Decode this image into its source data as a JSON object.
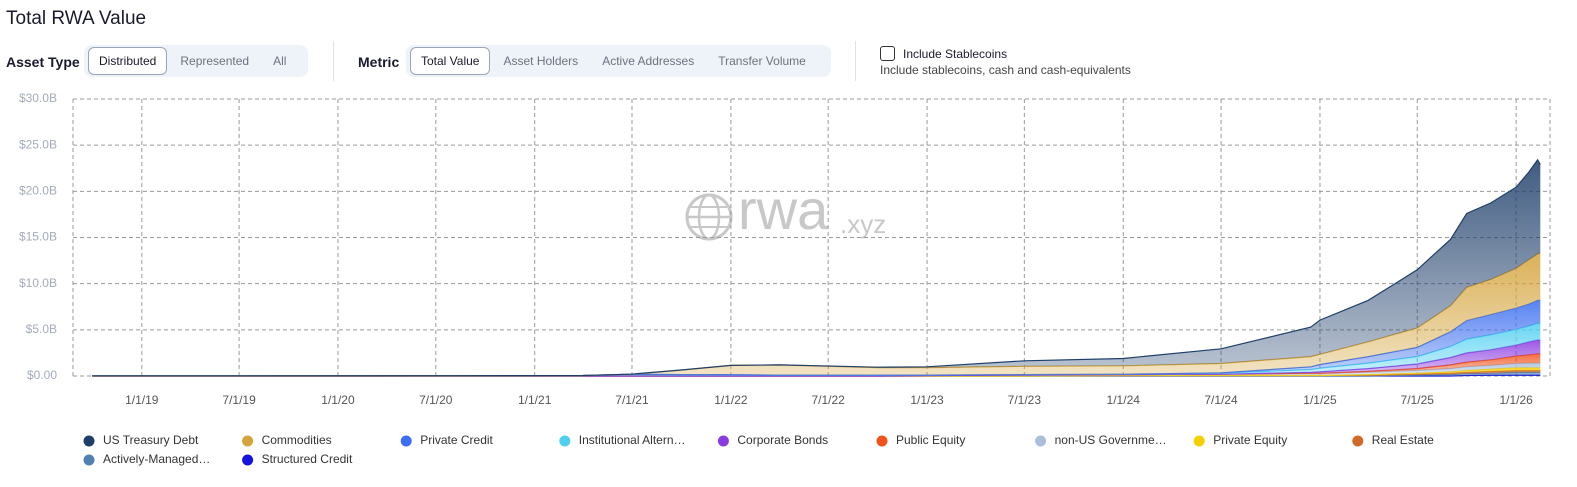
{
  "header": {
    "title": "Total RWA Value"
  },
  "controls": {
    "asset_type": {
      "label": "Asset Type",
      "options": [
        "Distributed",
        "Represented",
        "All"
      ],
      "selected": 0
    },
    "metric": {
      "label": "Metric",
      "options": [
        "Total Value",
        "Asset Holders",
        "Active Addresses",
        "Transfer Volume"
      ],
      "selected": 0
    },
    "stablecoins": {
      "label": "Include Stablecoins",
      "description": "Include stablecoins, cash and cash-equivalents",
      "checked": false
    }
  },
  "chart_data": {
    "type": "stacked-area",
    "watermark": "rwa",
    "watermark_suffix": ".xyz",
    "x": [
      "2018-10-01",
      "2019-07-01",
      "2020-07-01",
      "2021-04-01",
      "2021-06-30",
      "2021-10-01",
      "2022-01-01",
      "2022-04-01",
      "2022-10-01",
      "2023-01-01",
      "2023-07-01",
      "2024-01-01",
      "2024-07-01",
      "2024-12-15",
      "2025-01-01",
      "2025-04-01",
      "2025-07-01",
      "2025-09-01",
      "2025-10-01",
      "2025-11-15",
      "2026-01-01",
      "2026-01-25",
      "2026-02-10",
      "2026-02-15"
    ],
    "xlim": [
      "2018-08-26",
      "2026-03-05"
    ],
    "xticks": [
      {
        "value": "2019-01-01",
        "label": "1/1/19"
      },
      {
        "value": "2019-07-01",
        "label": "7/1/19"
      },
      {
        "value": "2020-01-01",
        "label": "1/1/20"
      },
      {
        "value": "2020-07-01",
        "label": "7/1/20"
      },
      {
        "value": "2021-01-01",
        "label": "1/1/21"
      },
      {
        "value": "2021-07-01",
        "label": "7/1/21"
      },
      {
        "value": "2022-01-01",
        "label": "1/1/22"
      },
      {
        "value": "2022-07-01",
        "label": "7/1/22"
      },
      {
        "value": "2023-01-01",
        "label": "1/1/23"
      },
      {
        "value": "2023-07-01",
        "label": "7/1/23"
      },
      {
        "value": "2024-01-01",
        "label": "1/1/24"
      },
      {
        "value": "2024-07-01",
        "label": "7/1/24"
      },
      {
        "value": "2025-01-01",
        "label": "1/1/25"
      },
      {
        "value": "2025-07-01",
        "label": "7/1/25"
      },
      {
        "value": "2026-01-01",
        "label": "1/1/26"
      }
    ],
    "ylim": [
      0,
      30
    ],
    "yticks": [
      {
        "value": 0,
        "label": "$0.00"
      },
      {
        "value": 5,
        "label": "$5.0B"
      },
      {
        "value": 10,
        "label": "$10.0B"
      },
      {
        "value": 15,
        "label": "$15.0B"
      },
      {
        "value": 20,
        "label": "$20.0B"
      },
      {
        "value": 25,
        "label": "$25.0B"
      },
      {
        "value": 30,
        "label": "$30.0B"
      }
    ],
    "grid": true,
    "series": [
      {
        "name": "US Treasury Debt",
        "color": "#1f3f6b",
        "values": [
          0,
          0,
          0,
          0,
          0,
          0,
          0,
          0,
          0.05,
          0.1,
          0.6,
          0.8,
          1.6,
          3.2,
          3.7,
          4.5,
          6.3,
          7.2,
          8.0,
          8.3,
          8.8,
          9.5,
          10.2,
          9.6
        ]
      },
      {
        "name": "Commodities",
        "color": "#d4a33a",
        "values": [
          0,
          0,
          0,
          0,
          0,
          0.5,
          1.0,
          1.1,
          0.8,
          0.8,
          0.9,
          0.9,
          1.0,
          1.1,
          1.1,
          1.6,
          2.1,
          2.8,
          3.6,
          3.8,
          4.3,
          4.8,
          5.0,
          5.1
        ]
      },
      {
        "name": "Private Credit",
        "color": "#3b6ef0",
        "values": [
          0,
          0,
          0,
          0,
          0,
          0,
          0,
          0,
          0,
          0,
          0,
          0,
          0.05,
          0.3,
          0.4,
          0.7,
          1.0,
          1.6,
          2.0,
          2.2,
          2.3,
          2.4,
          2.5,
          2.5
        ]
      },
      {
        "name": "Institutional Altern…",
        "color": "#4fd0f0",
        "values": [
          0.02,
          0.02,
          0.03,
          0.05,
          0.2,
          0.15,
          0.15,
          0.1,
          0.1,
          0.05,
          0.05,
          0.05,
          0.1,
          0.3,
          0.4,
          0.6,
          0.8,
          1.2,
          1.5,
          1.6,
          1.7,
          1.7,
          1.8,
          1.8
        ]
      },
      {
        "name": "Corporate Bonds",
        "color": "#8a3be0",
        "values": [
          0,
          0,
          0,
          0,
          0,
          0,
          0,
          0,
          0,
          0,
          0,
          0,
          0,
          0.1,
          0.15,
          0.3,
          0.5,
          0.8,
          1.0,
          1.1,
          1.2,
          1.4,
          1.5,
          1.5
        ]
      },
      {
        "name": "Public Equity",
        "color": "#f0541e",
        "values": [
          0,
          0,
          0,
          0,
          0,
          0,
          0,
          0,
          0,
          0,
          0,
          0,
          0,
          0.05,
          0.05,
          0.1,
          0.2,
          0.4,
          0.5,
          0.6,
          0.8,
          0.9,
          1.0,
          1.0
        ]
      },
      {
        "name": "non-US Governme…",
        "color": "#a9bfdc",
        "values": [
          0,
          0,
          0,
          0,
          0,
          0,
          0,
          0,
          0,
          0.05,
          0.1,
          0.1,
          0.15,
          0.2,
          0.2,
          0.25,
          0.3,
          0.35,
          0.4,
          0.4,
          0.45,
          0.5,
          0.5,
          0.5
        ]
      },
      {
        "name": "Private Equity",
        "color": "#f5d000",
        "values": [
          0,
          0,
          0,
          0,
          0,
          0,
          0,
          0,
          0,
          0,
          0,
          0,
          0,
          0,
          0,
          0.05,
          0.1,
          0.15,
          0.2,
          0.25,
          0.3,
          0.3,
          0.3,
          0.3
        ]
      },
      {
        "name": "Real Estate",
        "color": "#d0692a",
        "values": [
          0,
          0,
          0,
          0,
          0,
          0,
          0,
          0,
          0,
          0,
          0,
          0.05,
          0.05,
          0.05,
          0.05,
          0.1,
          0.1,
          0.15,
          0.15,
          0.2,
          0.2,
          0.2,
          0.2,
          0.2
        ]
      },
      {
        "name": "Actively-Managed…",
        "color": "#4f80b0",
        "values": [
          0,
          0,
          0,
          0,
          0,
          0,
          0,
          0,
          0,
          0,
          0,
          0,
          0,
          0,
          0,
          0,
          0.1,
          0.15,
          0.2,
          0.2,
          0.3,
          0.3,
          0.3,
          0.3
        ]
      },
      {
        "name": "Structured Credit",
        "color": "#1414e0",
        "values": [
          0,
          0,
          0,
          0,
          0,
          0,
          0,
          0,
          0,
          0,
          0,
          0,
          0,
          0,
          0,
          0,
          0,
          0,
          0.05,
          0.1,
          0.1,
          0.1,
          0.1,
          0.1
        ]
      }
    ]
  }
}
